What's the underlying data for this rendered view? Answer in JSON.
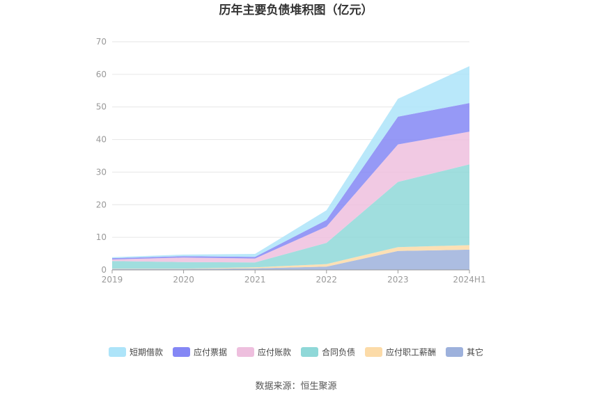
{
  "chart_data": {
    "type": "area",
    "stacked": true,
    "title": "历年主要负债堆积图（亿元）",
    "categories": [
      "2019",
      "2020",
      "2021",
      "2022",
      "2023",
      "2024H1"
    ],
    "ylim": [
      0,
      70
    ],
    "yticks": [
      0,
      10,
      20,
      30,
      40,
      50,
      60,
      70
    ],
    "grid": true,
    "legend_position": "bottom",
    "series": [
      {
        "name": "其它",
        "color": "#9db1dc",
        "values": [
          0.3,
          0.3,
          0.5,
          1.0,
          5.8,
          6.2
        ]
      },
      {
        "name": "应付职工薪酬",
        "color": "#fcdba8",
        "values": [
          0.1,
          0.1,
          0.3,
          0.8,
          1.2,
          1.4
        ]
      },
      {
        "name": "合同负债",
        "color": "#8fd8d8",
        "values": [
          2.3,
          2.0,
          1.5,
          6.5,
          20.0,
          24.8
        ]
      },
      {
        "name": "应付账款",
        "color": "#eebfde",
        "values": [
          0.5,
          1.4,
          1.2,
          5.0,
          11.5,
          10.0
        ]
      },
      {
        "name": "应付票据",
        "color": "#8487f5",
        "values": [
          0.4,
          0.4,
          0.5,
          2.0,
          8.5,
          8.8
        ]
      },
      {
        "name": "短期借款",
        "color": "#ade4f9",
        "values": [
          0.3,
          0.5,
          0.9,
          3.0,
          5.5,
          11.3
        ]
      }
    ],
    "legend_order": [
      "短期借款",
      "应付票据",
      "应付账款",
      "合同负债",
      "应付职工薪酬",
      "其它"
    ]
  },
  "source_text": "数据来源：恒生聚源"
}
